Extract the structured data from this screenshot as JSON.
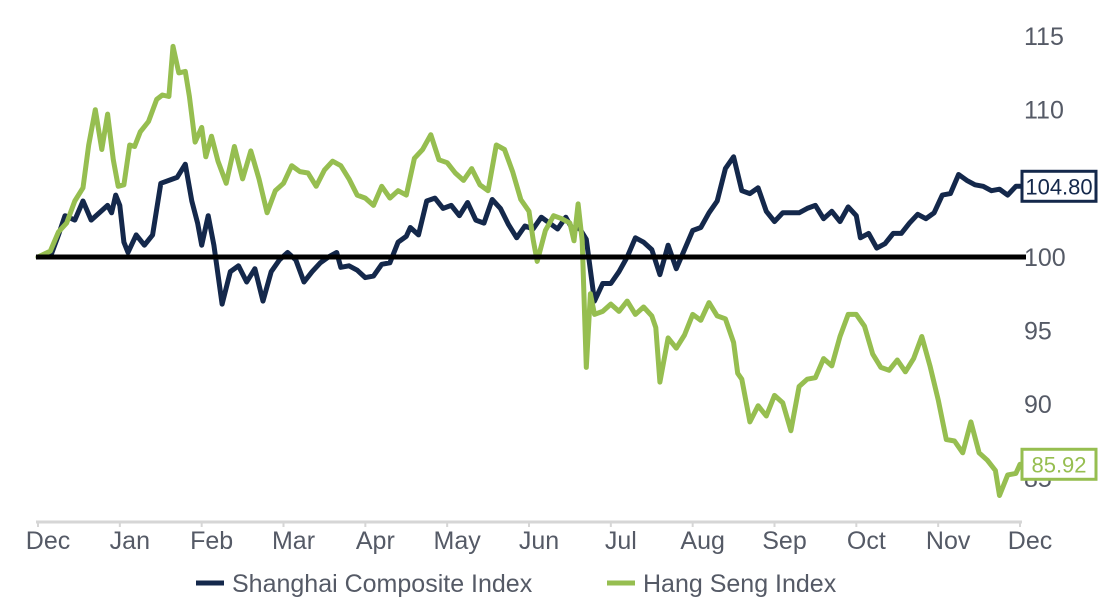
{
  "chart_data": {
    "type": "line",
    "title": "",
    "xlabel": "",
    "ylabel": "",
    "x_tick_labels": [
      "Dec",
      "Jan",
      "Feb",
      "Mar",
      "Apr",
      "May",
      "Jun",
      "Jul",
      "Aug",
      "Sep",
      "Oct",
      "Nov",
      "Dec"
    ],
    "y_ticks": [
      85,
      90,
      95,
      100,
      105,
      110,
      115
    ],
    "y_tick_labels": [
      "85",
      "90",
      "95",
      "100",
      "",
      "110",
      "115"
    ],
    "ylim": [
      82,
      116.5
    ],
    "xlim": [
      0,
      12
    ],
    "baseline": 100,
    "grid": false,
    "legend_position": "bottom",
    "colors": {
      "shanghai": "#14284b",
      "hangseng": "#96be50",
      "baseline": "#000000",
      "axis": "#d6d6d6"
    },
    "end_labels": {
      "shanghai": "104.80",
      "hangseng": "85.92"
    },
    "series": [
      {
        "name": "Shanghai Composite Index",
        "color": "#14284b",
        "points": [
          [
            0,
            100
          ],
          [
            0.15,
            100
          ],
          [
            0.25,
            101.5
          ],
          [
            0.33,
            102.8
          ],
          [
            0.45,
            102.5
          ],
          [
            0.55,
            103.8
          ],
          [
            0.65,
            102.5
          ],
          [
            0.75,
            103
          ],
          [
            0.85,
            103.5
          ],
          [
            0.9,
            103
          ],
          [
            0.95,
            104.2
          ],
          [
            1.0,
            103.5
          ],
          [
            1.05,
            101
          ],
          [
            1.1,
            100.3
          ],
          [
            1.2,
            101.5
          ],
          [
            1.3,
            100.8
          ],
          [
            1.4,
            101.5
          ],
          [
            1.5,
            105
          ],
          [
            1.6,
            105.2
          ],
          [
            1.7,
            105.4
          ],
          [
            1.8,
            106.3
          ],
          [
            1.88,
            103.8
          ],
          [
            1.95,
            102.3
          ],
          [
            2.0,
            100.8
          ],
          [
            2.08,
            102.8
          ],
          [
            2.15,
            100.8
          ],
          [
            2.25,
            96.8
          ],
          [
            2.35,
            99
          ],
          [
            2.45,
            99.4
          ],
          [
            2.55,
            98.3
          ],
          [
            2.65,
            99.2
          ],
          [
            2.75,
            97
          ],
          [
            2.85,
            99
          ],
          [
            2.95,
            99.8
          ],
          [
            3.05,
            100.3
          ],
          [
            3.15,
            99.8
          ],
          [
            3.25,
            98.3
          ],
          [
            3.35,
            99
          ],
          [
            3.45,
            99.6
          ],
          [
            3.55,
            100
          ],
          [
            3.65,
            100.3
          ],
          [
            3.7,
            99.3
          ],
          [
            3.8,
            99.4
          ],
          [
            3.9,
            99.1
          ],
          [
            4.0,
            98.6
          ],
          [
            4.1,
            98.7
          ],
          [
            4.2,
            99.5
          ],
          [
            4.3,
            99.6
          ],
          [
            4.4,
            101
          ],
          [
            4.5,
            101.4
          ],
          [
            4.55,
            102
          ],
          [
            4.65,
            101.5
          ],
          [
            4.75,
            103.8
          ],
          [
            4.85,
            104
          ],
          [
            4.95,
            103.3
          ],
          [
            5.05,
            103.5
          ],
          [
            5.15,
            102.8
          ],
          [
            5.25,
            103.7
          ],
          [
            5.35,
            102.5
          ],
          [
            5.45,
            102.3
          ],
          [
            5.55,
            103.9
          ],
          [
            5.65,
            103.3
          ],
          [
            5.75,
            102.2
          ],
          [
            5.85,
            101.3
          ],
          [
            5.95,
            102.1
          ],
          [
            6.05,
            101.9
          ],
          [
            6.15,
            102.7
          ],
          [
            6.25,
            102.3
          ],
          [
            6.35,
            101.9
          ],
          [
            6.45,
            102.7
          ],
          [
            6.55,
            101.7
          ],
          [
            6.6,
            102.1
          ],
          [
            6.7,
            101.2
          ],
          [
            6.8,
            97
          ],
          [
            6.9,
            98.2
          ],
          [
            7.0,
            98.2
          ],
          [
            7.1,
            99
          ],
          [
            7.2,
            100
          ],
          [
            7.3,
            101.3
          ],
          [
            7.4,
            101
          ],
          [
            7.5,
            100.5
          ],
          [
            7.6,
            98.8
          ],
          [
            7.7,
            100.8
          ],
          [
            7.8,
            99.2
          ],
          [
            7.9,
            100.5
          ],
          [
            8.0,
            101.8
          ],
          [
            8.1,
            102
          ],
          [
            8.2,
            103
          ],
          [
            8.3,
            103.8
          ],
          [
            8.4,
            106
          ],
          [
            8.5,
            106.8
          ],
          [
            8.6,
            104.5
          ],
          [
            8.7,
            104.3
          ],
          [
            8.8,
            104.7
          ],
          [
            8.9,
            103.1
          ],
          [
            9.0,
            102.4
          ],
          [
            9.1,
            103
          ],
          [
            9.2,
            103
          ],
          [
            9.3,
            103
          ],
          [
            9.4,
            103.3
          ],
          [
            9.5,
            103.5
          ],
          [
            9.6,
            102.6
          ],
          [
            9.7,
            103.1
          ],
          [
            9.8,
            102.4
          ],
          [
            9.9,
            103.4
          ],
          [
            10.0,
            102.8
          ],
          [
            10.05,
            101.3
          ],
          [
            10.15,
            101.6
          ],
          [
            10.25,
            100.6
          ],
          [
            10.35,
            100.9
          ],
          [
            10.45,
            101.6
          ],
          [
            10.55,
            101.6
          ],
          [
            10.65,
            102.3
          ],
          [
            10.75,
            102.9
          ],
          [
            10.85,
            102.6
          ],
          [
            10.95,
            103
          ],
          [
            11.05,
            104.2
          ],
          [
            11.15,
            104.3
          ],
          [
            11.25,
            105.6
          ],
          [
            11.35,
            105.2
          ],
          [
            11.45,
            104.9
          ],
          [
            11.55,
            104.8
          ],
          [
            11.65,
            104.5
          ],
          [
            11.75,
            104.6
          ],
          [
            11.85,
            104.2
          ],
          [
            11.95,
            104.8
          ],
          [
            12.0,
            104.8
          ]
        ]
      },
      {
        "name": "Hang Seng Index",
        "color": "#96be50",
        "points": [
          [
            0,
            100
          ],
          [
            0.15,
            100.4
          ],
          [
            0.25,
            101.7
          ],
          [
            0.35,
            102.3
          ],
          [
            0.45,
            103.8
          ],
          [
            0.55,
            104.7
          ],
          [
            0.62,
            107.6
          ],
          [
            0.7,
            110
          ],
          [
            0.78,
            107.3
          ],
          [
            0.85,
            109.7
          ],
          [
            0.92,
            106.6
          ],
          [
            0.98,
            104.8
          ],
          [
            1.05,
            104.9
          ],
          [
            1.12,
            107.6
          ],
          [
            1.18,
            107.5
          ],
          [
            1.25,
            108.5
          ],
          [
            1.35,
            109.2
          ],
          [
            1.45,
            110.7
          ],
          [
            1.52,
            111
          ],
          [
            1.6,
            110.9
          ],
          [
            1.65,
            114.3
          ],
          [
            1.72,
            112.5
          ],
          [
            1.8,
            112.6
          ],
          [
            1.85,
            110.9
          ],
          [
            1.92,
            107.8
          ],
          [
            2.0,
            108.8
          ],
          [
            2.05,
            106.8
          ],
          [
            2.12,
            108.2
          ],
          [
            2.2,
            106.5
          ],
          [
            2.3,
            105
          ],
          [
            2.4,
            107.5
          ],
          [
            2.5,
            105.3
          ],
          [
            2.6,
            107.2
          ],
          [
            2.7,
            105.3
          ],
          [
            2.8,
            103
          ],
          [
            2.9,
            104.5
          ],
          [
            3.0,
            105
          ],
          [
            3.1,
            106.2
          ],
          [
            3.2,
            105.8
          ],
          [
            3.3,
            105.7
          ],
          [
            3.4,
            104.8
          ],
          [
            3.5,
            105.9
          ],
          [
            3.6,
            106.5
          ],
          [
            3.7,
            106.2
          ],
          [
            3.8,
            105.3
          ],
          [
            3.9,
            104.2
          ],
          [
            4.0,
            104
          ],
          [
            4.1,
            103.5
          ],
          [
            4.2,
            104.8
          ],
          [
            4.3,
            104
          ],
          [
            4.4,
            104.5
          ],
          [
            4.5,
            104.2
          ],
          [
            4.6,
            106.7
          ],
          [
            4.7,
            107.3
          ],
          [
            4.8,
            108.3
          ],
          [
            4.9,
            106.6
          ],
          [
            5.0,
            106.4
          ],
          [
            5.1,
            105.7
          ],
          [
            5.2,
            105.2
          ],
          [
            5.3,
            106
          ],
          [
            5.4,
            104.9
          ],
          [
            5.5,
            104.5
          ],
          [
            5.6,
            107.6
          ],
          [
            5.7,
            107.3
          ],
          [
            5.8,
            105.8
          ],
          [
            5.9,
            103.9
          ],
          [
            6.0,
            103.1
          ],
          [
            6.05,
            101.2
          ],
          [
            6.1,
            99.7
          ],
          [
            6.2,
            101.8
          ],
          [
            6.3,
            102.8
          ],
          [
            6.4,
            102.6
          ],
          [
            6.5,
            102.3
          ],
          [
            6.55,
            101.1
          ],
          [
            6.6,
            103.6
          ],
          [
            6.65,
            101.1
          ],
          [
            6.7,
            92.5
          ],
          [
            6.75,
            97.5
          ],
          [
            6.8,
            96.1
          ],
          [
            6.9,
            96.3
          ],
          [
            7.0,
            96.8
          ],
          [
            7.1,
            96.3
          ],
          [
            7.2,
            97
          ],
          [
            7.3,
            96.1
          ],
          [
            7.4,
            96.6
          ],
          [
            7.5,
            96
          ],
          [
            7.55,
            95.2
          ],
          [
            7.6,
            91.5
          ],
          [
            7.7,
            94.5
          ],
          [
            7.8,
            93.8
          ],
          [
            7.9,
            94.7
          ],
          [
            8.0,
            96.1
          ],
          [
            8.1,
            95.7
          ],
          [
            8.2,
            96.9
          ],
          [
            8.3,
            96
          ],
          [
            8.4,
            95.8
          ],
          [
            8.5,
            94.2
          ],
          [
            8.55,
            92.1
          ],
          [
            8.6,
            91.7
          ],
          [
            8.7,
            88.8
          ],
          [
            8.8,
            89.9
          ],
          [
            8.9,
            89.2
          ],
          [
            9.0,
            90.6
          ],
          [
            9.1,
            90.1
          ],
          [
            9.2,
            88.2
          ],
          [
            9.3,
            91.2
          ],
          [
            9.4,
            91.7
          ],
          [
            9.5,
            91.8
          ],
          [
            9.6,
            93.1
          ],
          [
            9.7,
            92.6
          ],
          [
            9.8,
            94.6
          ],
          [
            9.9,
            96.1
          ],
          [
            10.0,
            96.1
          ],
          [
            10.1,
            95.3
          ],
          [
            10.2,
            93.4
          ],
          [
            10.3,
            92.5
          ],
          [
            10.4,
            92.3
          ],
          [
            10.5,
            93
          ],
          [
            10.6,
            92.2
          ],
          [
            10.7,
            93.1
          ],
          [
            10.8,
            94.6
          ],
          [
            10.9,
            92.6
          ],
          [
            11.0,
            90.3
          ],
          [
            11.1,
            87.6
          ],
          [
            11.2,
            87.5
          ],
          [
            11.3,
            86.7
          ],
          [
            11.4,
            88.8
          ],
          [
            11.5,
            86.7
          ],
          [
            11.6,
            86.2
          ],
          [
            11.7,
            85.5
          ],
          [
            11.75,
            83.8
          ],
          [
            11.85,
            85.2
          ],
          [
            11.95,
            85.3
          ],
          [
            12.0,
            85.92
          ]
        ]
      }
    ]
  }
}
